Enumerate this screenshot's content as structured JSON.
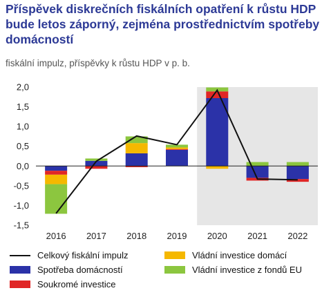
{
  "title": "Příspěvek diskrečních fiskálních opatření k růstu HDP bude letos záporný, zejména prostřednictvím spotřeby domácností",
  "subtitle": "fiskální impulz, příspěvky k růstu HDP v p. b.",
  "chart_data": {
    "type": "bar",
    "stacked": true,
    "categories": [
      "2016",
      "2017",
      "2018",
      "2019",
      "2020",
      "2021",
      "2022"
    ],
    "forecast_shading_from": "2020",
    "ylim": [
      -1.5,
      2.0
    ],
    "yticks": [
      2.0,
      1.5,
      1.0,
      0.5,
      0.0,
      -0.5,
      -1.0,
      -1.5
    ],
    "ytick_labels": [
      "2,0",
      "1,5",
      "1,0",
      "0,5",
      "0,0",
      "-0,5",
      "-1,0",
      "-1,5"
    ],
    "series": [
      {
        "name": "Spotřeba domácností",
        "color": "#2b32a8",
        "values": [
          -0.12,
          0.13,
          0.32,
          0.41,
          1.72,
          -0.3,
          -0.33
        ]
      },
      {
        "name": "Soukromé investice",
        "color": "#e02626",
        "values": [
          -0.1,
          -0.07,
          -0.03,
          0.02,
          0.17,
          -0.07,
          -0.07
        ]
      },
      {
        "name": "Vládní investice domácí",
        "color": "#f5b800",
        "values": [
          -0.24,
          0.0,
          0.26,
          0.04,
          -0.07,
          0.0,
          0.0
        ]
      },
      {
        "name": "Vládní investice z fondů EU",
        "color": "#8cc63f",
        "values": [
          -0.75,
          0.06,
          0.17,
          0.07,
          0.1,
          0.1,
          0.1
        ]
      }
    ],
    "line": {
      "name": "Celkový fiskální impulz",
      "color": "#111111",
      "values": [
        -1.2,
        0.12,
        0.76,
        0.54,
        1.92,
        -0.33,
        -0.35
      ]
    },
    "grid": false,
    "legend_position": "bottom"
  }
}
